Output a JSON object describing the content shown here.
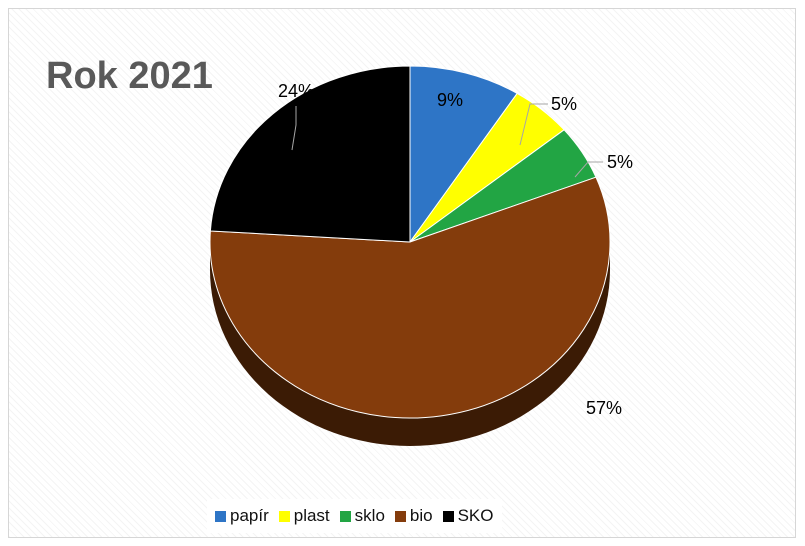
{
  "chart_data": {
    "type": "pie",
    "title": "Rok 2021",
    "slices": [
      {
        "label": "papír",
        "value": 9,
        "display": "9%",
        "color": "#2e75c6"
      },
      {
        "label": "plast",
        "value": 5,
        "display": "5%",
        "color": "#ffff00"
      },
      {
        "label": "sklo",
        "value": 5,
        "display": "5%",
        "color": "#22a544"
      },
      {
        "label": "bio",
        "value": 57,
        "display": "57%",
        "color": "#843c0c"
      },
      {
        "label": "SKO",
        "value": 24,
        "display": "24%",
        "color": "#000000"
      }
    ],
    "legend_position": "bottom",
    "style": "3d-pie"
  }
}
